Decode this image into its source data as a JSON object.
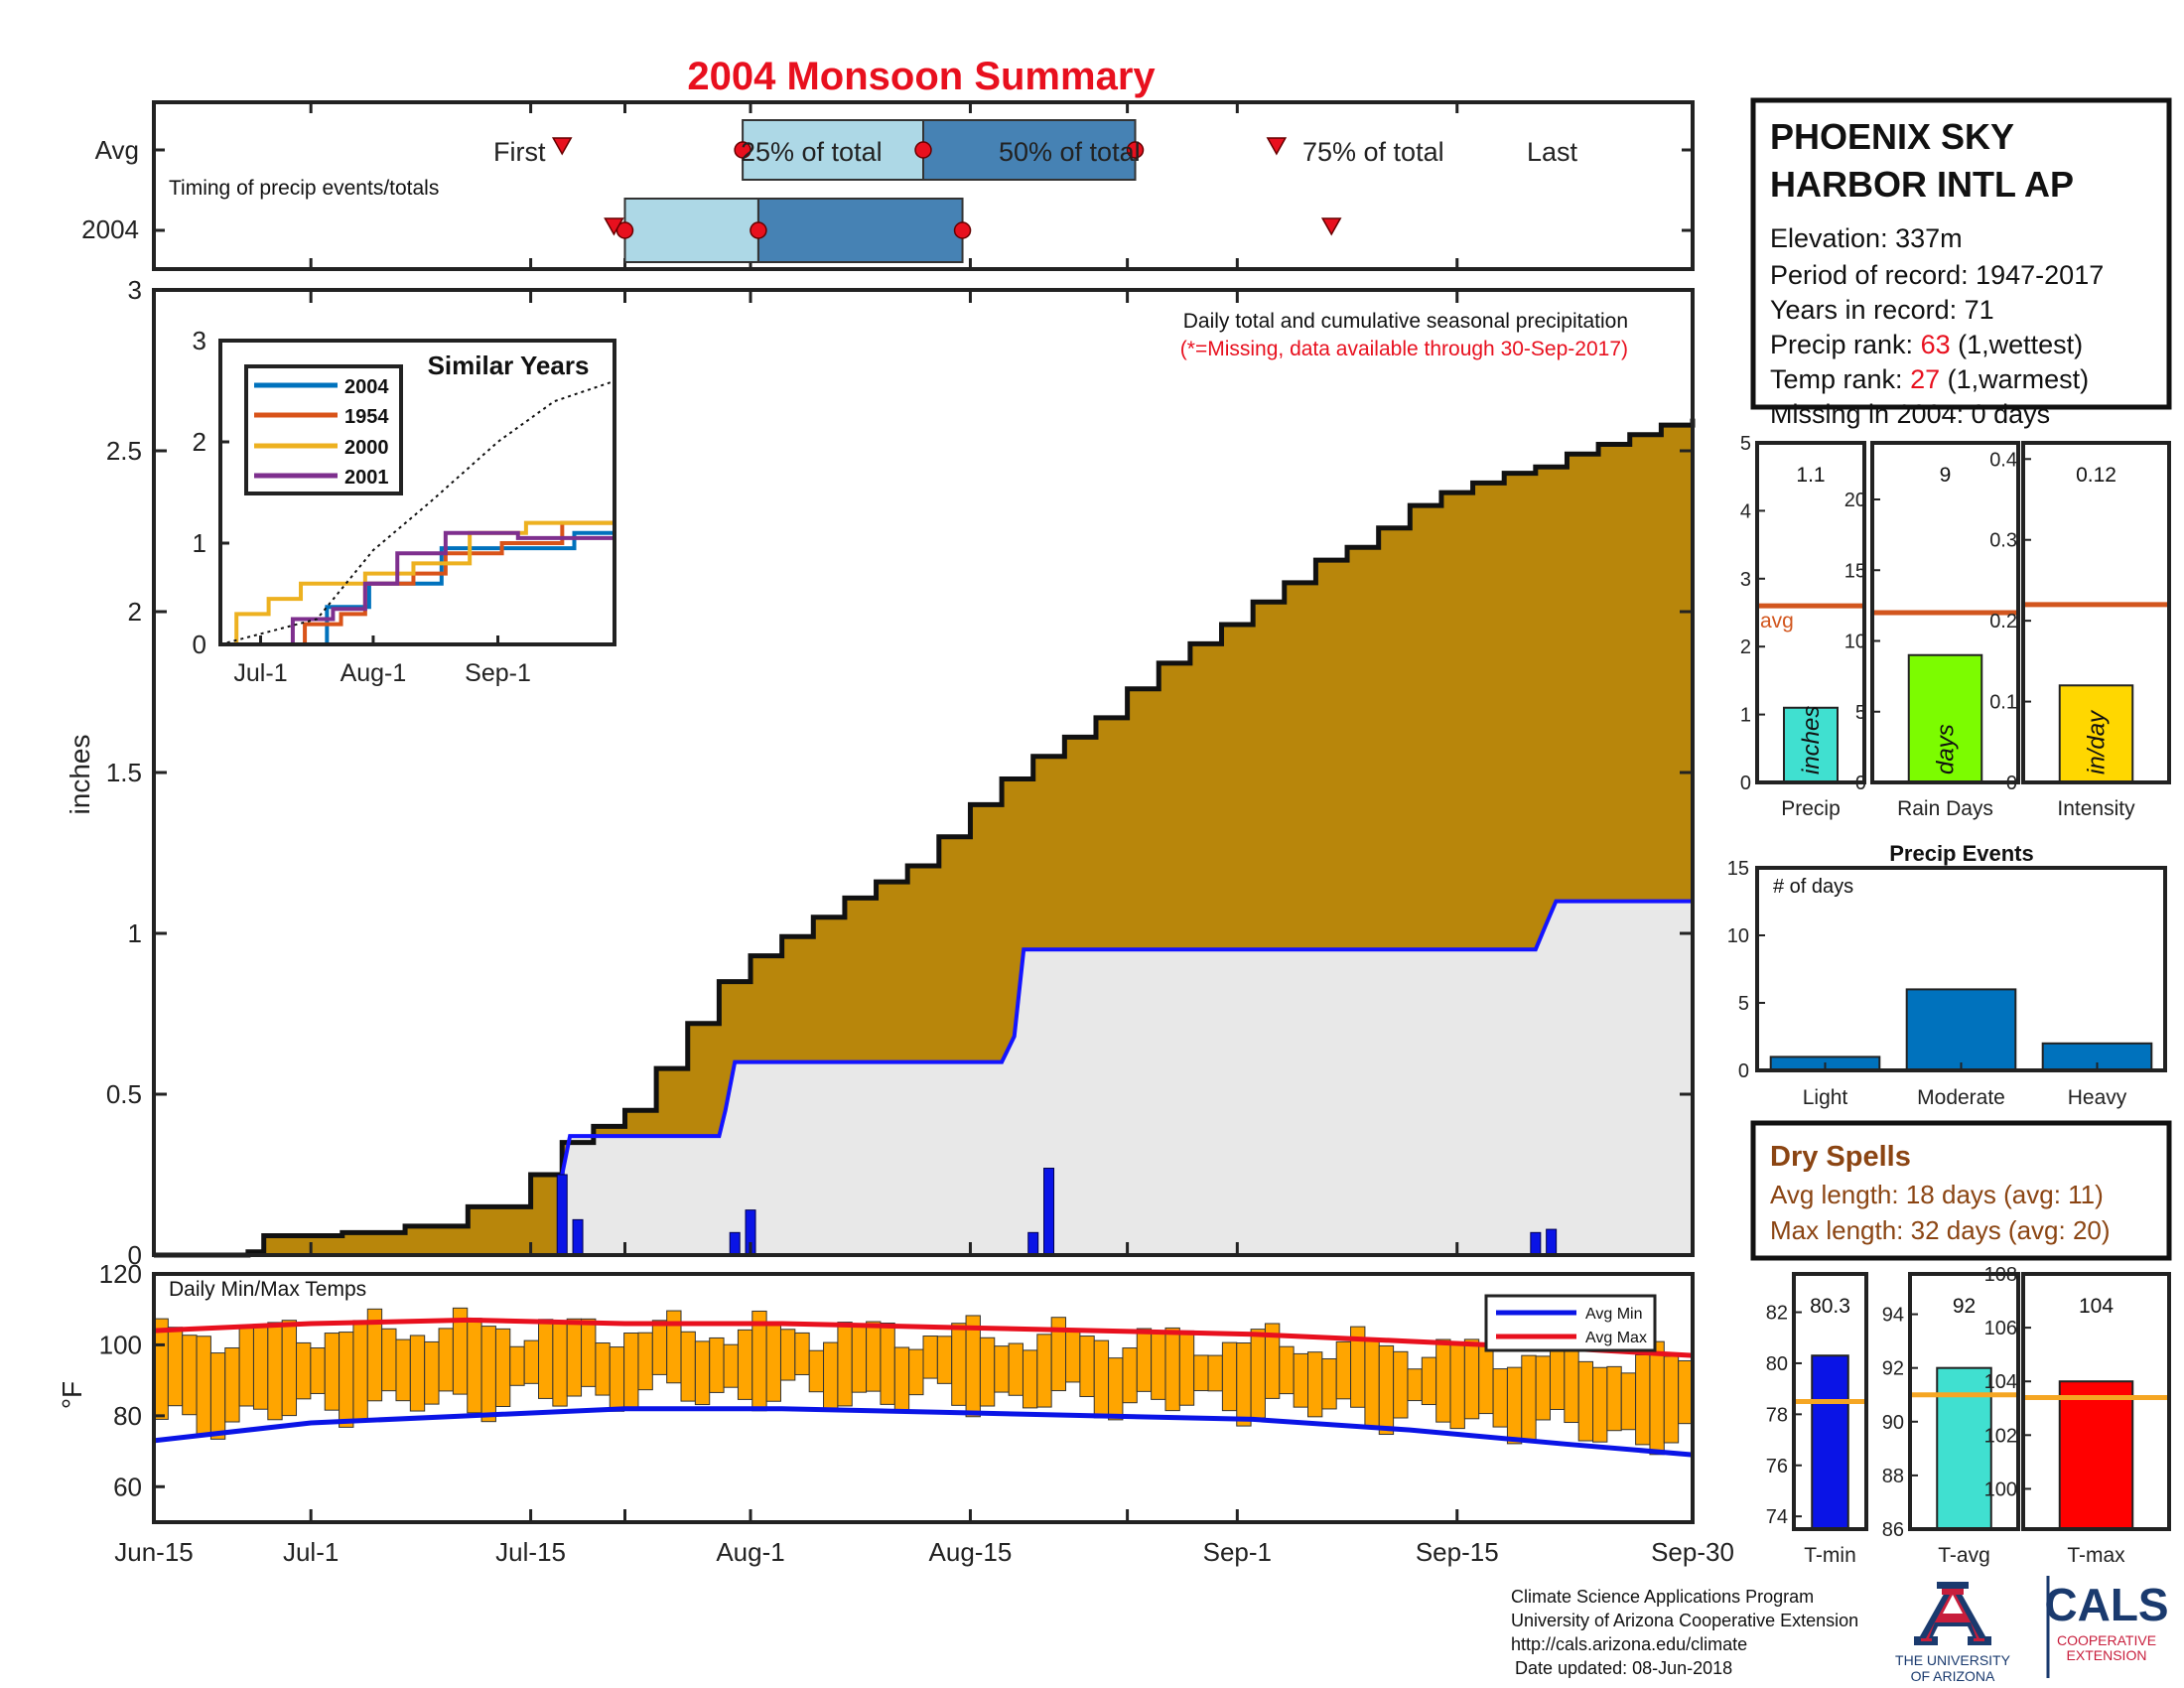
{
  "title": "2004 Monsoon Summary",
  "colors": {
    "title": "#e8101e",
    "cum_avg_fill": "#b8860b",
    "season_fill": "#e8e8e8",
    "season_line": "#1414ff",
    "daily_bars": "#0a14e6",
    "box_light": "#add8e6",
    "box_dark": "#4682b4",
    "marker": "#e8101e",
    "temp_bars": "#ffa500",
    "avg_min": "#0a14e6",
    "avg_max": "#e8101e",
    "avg_line": "#d2561e",
    "temp_avg_line": "#f5a623",
    "series_2004": "#0072bd",
    "series_1954": "#d95319",
    "series_2000": "#edb120",
    "series_2001": "#7e2f8e",
    "dry_text": "#8b4513",
    "ua_red": "#c81e3c",
    "ua_blue": "#1a3a6e"
  },
  "timing": {
    "rows": [
      "Avg",
      "2004"
    ],
    "note": "Timing of precip events/totals",
    "avg_labels": {
      "first": "First",
      "q25": "25% of total",
      "q50": "50% of total",
      "q75": "75% of total",
      "last": "Last"
    },
    "avg_days": {
      "first": 26,
      "q25": 37.5,
      "q50": 49,
      "q75": 62.5,
      "last": 71.5
    },
    "y2004_days": {
      "first": 29.3,
      "q25": 30,
      "q50": 38.5,
      "q75": 51.5,
      "last": 75
    }
  },
  "main": {
    "ylabel": "inches",
    "note": "Daily total and cumulative seasonal precipitation",
    "missing_note": "(*=Missing, data available through 30-Sep-2017)"
  },
  "x_ticks": [
    {
      "day": 0,
      "label": "Jun-15"
    },
    {
      "day": 10,
      "label": "Jul-1"
    },
    {
      "day": 24,
      "label": "Jul-15"
    },
    {
      "day": 30,
      "label": ""
    },
    {
      "day": 38,
      "label": "Aug-1"
    },
    {
      "day": 52,
      "label": "Aug-15"
    },
    {
      "day": 62,
      "label": ""
    },
    {
      "day": 69,
      "label": "Sep-1"
    },
    {
      "day": 83,
      "label": "Sep-15"
    },
    {
      "day": 98,
      "label": "Sep-30"
    }
  ],
  "chart_data": [
    {
      "id": "main",
      "type": "area",
      "ylabel": "inches",
      "ylim": [
        0,
        3
      ],
      "xlim": [
        0,
        108
      ],
      "x_ticks": [
        "Jun-15",
        "Jul-1",
        "Jul-15",
        "Aug-1",
        "Aug-15",
        "Sep-1",
        "Sep-15",
        "Sep-30"
      ],
      "y_ticks": [
        0,
        0.5,
        1,
        1.5,
        2,
        2.5,
        3
      ],
      "series": [
        {
          "kind": "avg_cumulative_area",
          "points": [
            [
              0,
              0
            ],
            [
              6,
              0.01
            ],
            [
              7,
              0.06
            ],
            [
              12,
              0.07
            ],
            [
              16,
              0.09
            ],
            [
              20,
              0.15
            ],
            [
              24,
              0.25
            ],
            [
              26,
              0.35
            ],
            [
              28,
              0.4
            ],
            [
              30,
              0.45
            ],
            [
              32,
              0.58
            ],
            [
              34,
              0.72
            ],
            [
              36,
              0.85
            ],
            [
              38,
              0.93
            ],
            [
              40,
              0.99
            ],
            [
              42,
              1.05
            ],
            [
              44,
              1.11
            ],
            [
              46,
              1.16
            ],
            [
              48,
              1.21
            ],
            [
              50,
              1.3
            ],
            [
              52,
              1.4
            ],
            [
              54,
              1.48
            ],
            [
              56,
              1.55
            ],
            [
              58,
              1.61
            ],
            [
              60,
              1.67
            ],
            [
              62,
              1.76
            ],
            [
              64,
              1.84
            ],
            [
              66,
              1.9
            ],
            [
              68,
              1.96
            ],
            [
              70,
              2.03
            ],
            [
              72,
              2.09
            ],
            [
              74,
              2.16
            ],
            [
              76,
              2.2
            ],
            [
              78,
              2.26
            ],
            [
              80,
              2.33
            ],
            [
              82,
              2.37
            ],
            [
              84,
              2.4
            ],
            [
              86,
              2.43
            ],
            [
              88,
              2.45
            ],
            [
              90,
              2.49
            ],
            [
              92,
              2.52
            ],
            [
              94,
              2.55
            ],
            [
              96,
              2.58
            ],
            [
              98,
              2.6
            ]
          ]
        },
        {
          "name": "2004",
          "kind": "season_cumulative",
          "points": [
            [
              0,
              0
            ],
            [
              25.8,
              0
            ],
            [
              26,
              0.25
            ],
            [
              26.5,
              0.37
            ],
            [
              28,
              0.37
            ],
            [
              36,
              0.37
            ],
            [
              36.4,
              0.45
            ],
            [
              37,
              0.6
            ],
            [
              44,
              0.6
            ],
            [
              45,
              0.6
            ],
            [
              54,
              0.6
            ],
            [
              54.8,
              0.68
            ],
            [
              55.4,
              0.95
            ],
            [
              88,
              0.95
            ],
            [
              88.6,
              1.02
            ],
            [
              89.3,
              1.1
            ],
            [
              98,
              1.1
            ]
          ]
        },
        {
          "kind": "daily_precip",
          "points": [
            [
              26,
              0.25
            ],
            [
              27,
              0.11
            ],
            [
              37,
              0.07
            ],
            [
              38,
              0.14
            ],
            [
              56,
              0.07
            ],
            [
              57,
              0.27
            ],
            [
              88,
              0.07
            ],
            [
              89,
              0.08
            ]
          ]
        }
      ]
    },
    {
      "id": "similar_years",
      "type": "line",
      "title": "Similar Years",
      "xlim": [
        0,
        108
      ],
      "ylim": [
        0,
        3
      ],
      "x_ticks": [
        "Jul-1",
        "Aug-1",
        "Sep-1"
      ],
      "y_ticks": [
        0,
        1,
        2,
        3
      ],
      "series": [
        {
          "name": "2004",
          "points": [
            [
              0,
              0
            ],
            [
              26,
              0
            ],
            [
              26.5,
              0.37
            ],
            [
              37,
              0.6
            ],
            [
              55,
              0.95
            ],
            [
              88,
              1.1
            ],
            [
              98,
              1.1
            ]
          ]
        },
        {
          "name": "1954",
          "points": [
            [
              0,
              0
            ],
            [
              20,
              0
            ],
            [
              21,
              0.2
            ],
            [
              30,
              0.3
            ],
            [
              36,
              0.6
            ],
            [
              48,
              0.7
            ],
            [
              56,
              0.9
            ],
            [
              70,
              1.0
            ],
            [
              85,
              1.2
            ],
            [
              98,
              1.4
            ]
          ]
        },
        {
          "name": "2000",
          "points": [
            [
              0,
              0
            ],
            [
              3,
              0
            ],
            [
              4,
              0.3
            ],
            [
              12,
              0.45
            ],
            [
              20,
              0.6
            ],
            [
              36,
              0.7
            ],
            [
              48,
              0.8
            ],
            [
              62,
              1.1
            ],
            [
              76,
              1.2
            ],
            [
              98,
              1.22
            ]
          ]
        },
        {
          "name": "2001",
          "points": [
            [
              0,
              0
            ],
            [
              14,
              0
            ],
            [
              18,
              0.25
            ],
            [
              28,
              0.35
            ],
            [
              36,
              0.6
            ],
            [
              44,
              0.9
            ],
            [
              56,
              1.1
            ],
            [
              74,
              1.05
            ],
            [
              98,
              1.15
            ]
          ]
        },
        {
          "name": "avg",
          "kind": "dotted",
          "points": [
            [
              0,
              0
            ],
            [
              24,
              0.25
            ],
            [
              38,
              0.93
            ],
            [
              52,
              1.4
            ],
            [
              69,
              2.0
            ],
            [
              83,
              2.4
            ],
            [
              98,
              2.6
            ]
          ]
        }
      ]
    },
    {
      "id": "temps",
      "type": "bar",
      "title": "Daily Min/Max Temps",
      "ylabel": "°F",
      "ylim": [
        50,
        120
      ],
      "y_ticks": [
        60,
        80,
        100,
        120
      ],
      "avg_min": [
        [
          0,
          73
        ],
        [
          10,
          78
        ],
        [
          20,
          80
        ],
        [
          30,
          82
        ],
        [
          40,
          82
        ],
        [
          50,
          81
        ],
        [
          60,
          80
        ],
        [
          70,
          79
        ],
        [
          80,
          76
        ],
        [
          90,
          72
        ],
        [
          98,
          69
        ]
      ],
      "avg_max": [
        [
          0,
          104
        ],
        [
          10,
          106
        ],
        [
          20,
          107
        ],
        [
          30,
          106
        ],
        [
          40,
          106
        ],
        [
          50,
          105
        ],
        [
          60,
          104
        ],
        [
          70,
          103
        ],
        [
          80,
          101
        ],
        [
          90,
          99
        ],
        [
          98,
          97
        ]
      ],
      "legend": [
        "Avg Min",
        "Avg Max"
      ]
    },
    {
      "id": "precip_stats",
      "type": "bar",
      "categories": [
        "Precip",
        "Rain Days",
        "Intensity"
      ],
      "values": [
        1.1,
        9,
        0.12
      ],
      "averages": [
        2.6,
        12,
        0.22
      ],
      "units": [
        "inches",
        "days",
        "in/day"
      ],
      "ylims": [
        [
          0,
          5
        ],
        [
          0,
          24
        ],
        [
          0,
          0.42
        ]
      ],
      "y_ticks": [
        [
          0,
          1,
          2,
          3,
          4,
          5
        ],
        [
          0,
          5,
          10,
          15,
          20
        ],
        [
          0,
          0.1,
          0.2,
          0.3,
          0.4
        ]
      ],
      "avg_label": "avg"
    },
    {
      "id": "precip_events",
      "type": "bar",
      "title": "Precip Events",
      "ylabel": "# of days",
      "categories": [
        "Light",
        "Moderate",
        "Heavy"
      ],
      "values": [
        1,
        6,
        2
      ],
      "ylim": [
        0,
        15
      ],
      "y_ticks": [
        0,
        5,
        10,
        15
      ]
    },
    {
      "id": "temp_stats",
      "type": "bar",
      "categories": [
        "T-min",
        "T-avg",
        "T-max"
      ],
      "values": [
        80.3,
        92,
        104
      ],
      "averages": [
        78.5,
        91,
        103.4
      ],
      "ylims": [
        [
          73.5,
          83.5
        ],
        [
          86,
          95.5
        ],
        [
          98.5,
          108
        ]
      ],
      "y_ticks": [
        [
          74,
          76,
          78,
          80,
          82
        ],
        [
          86,
          88,
          90,
          92,
          94
        ],
        [
          100,
          102,
          104,
          106,
          108
        ]
      ]
    }
  ],
  "stats_labels": {
    "precip": {
      "value_text": "1.1",
      "unit": "inches",
      "label": "Precip",
      "avg": "avg"
    },
    "rain": {
      "value_text": "9",
      "unit": "days",
      "label": "Rain Days"
    },
    "intensity": {
      "value_text": "0.12",
      "unit": "in/day",
      "label": "Intensity"
    },
    "events": {
      "title": "Precip Events",
      "ylabel": "# of days",
      "light": "Light",
      "moderate": "Moderate",
      "heavy": "Heavy"
    },
    "tmin": {
      "value_text": "80.3",
      "label": "T-min"
    },
    "tavg": {
      "value_text": "92",
      "label": "T-avg"
    },
    "tmax": {
      "value_text": "104",
      "label": "T-max"
    }
  },
  "station": {
    "name_line1": "PHOENIX SKY",
    "name_line2": "HARBOR INTL AP",
    "elevation": "Elevation: 337m",
    "period": "Period of record: 1947-2017",
    "years": "Years in record: 71",
    "precip_rank_prefix": "Precip rank: ",
    "precip_rank_value": "63",
    "precip_rank_suffix": " (1,wettest)",
    "temp_rank_prefix": "Temp rank: ",
    "temp_rank_value": "27",
    "temp_rank_suffix": " (1,warmest)",
    "missing": "Missing in 2004: 0 days"
  },
  "dry_spells": {
    "title": "Dry Spells",
    "avg_length": "Avg length: 18 days (avg: 11)",
    "max_length": "Max length: 32 days (avg: 20)"
  },
  "temps_panel": {
    "title": "Daily Min/Max Temps",
    "ylabel": "°F",
    "legend_min": "Avg Min",
    "legend_max": "Avg Max"
  },
  "similar_labels": {
    "title": "Similar Years",
    "s2004": "2004",
    "s1954": "1954",
    "s2000": "2000",
    "s2001": "2001"
  },
  "footer": {
    "line1": "Climate Science Applications Program",
    "line2": "University of Arizona Cooperative Extension",
    "line3": "http://cals.arizona.edu/climate",
    "line4": "Date updated: 08-Jun-2018"
  },
  "logos": {
    "ua_line1": "THE UNIVERSITY",
    "ua_line2": "OF ARIZONA",
    "cals": "CALS",
    "cals_line1": "COOPERATIVE",
    "cals_line2": "EXTENSION"
  }
}
